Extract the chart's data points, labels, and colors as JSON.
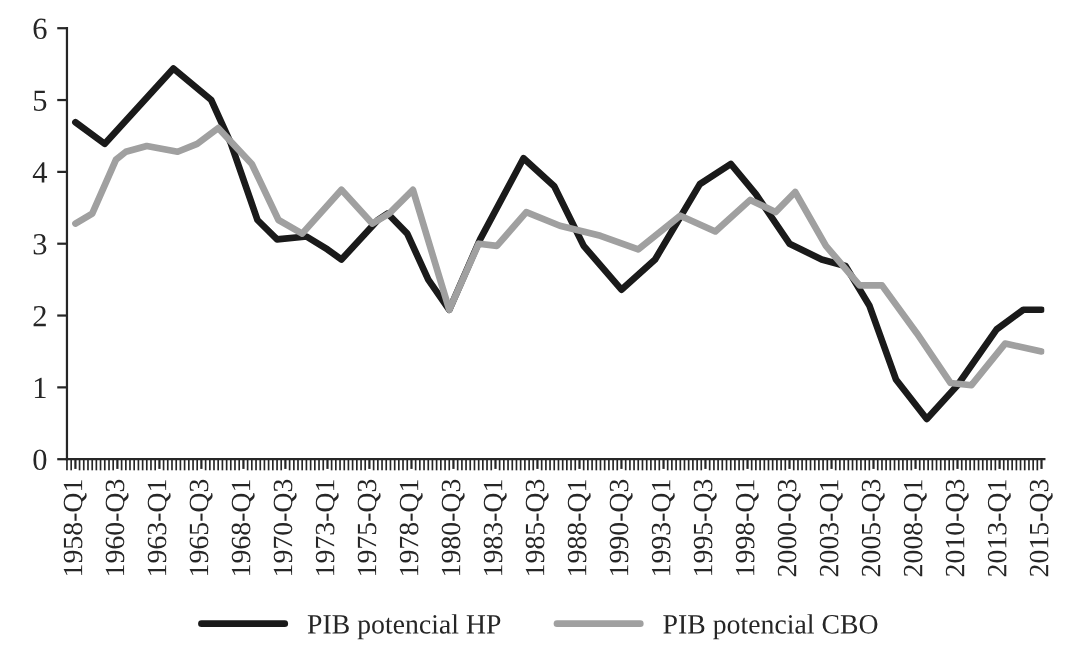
{
  "chart_data": {
    "type": "line",
    "xlim": [
      "1957-07",
      "2015-09"
    ],
    "xticks": [
      {
        "value": "1958-01",
        "label": "1958-Q1"
      },
      {
        "value": "1960-07",
        "label": "1960-Q3"
      },
      {
        "value": "1963-01",
        "label": "1963-Q1"
      },
      {
        "value": "1965-07",
        "label": "1965-Q3"
      },
      {
        "value": "1968-01",
        "label": "1968-Q1"
      },
      {
        "value": "1970-07",
        "label": "1970-Q3"
      },
      {
        "value": "1973-01",
        "label": "1973-Q1"
      },
      {
        "value": "1975-07",
        "label": "1975-Q3"
      },
      {
        "value": "1978-01",
        "label": "1978-Q1"
      },
      {
        "value": "1980-07",
        "label": "1980-Q3"
      },
      {
        "value": "1983-01",
        "label": "1983-Q1"
      },
      {
        "value": "1985-07",
        "label": "1985-Q3"
      },
      {
        "value": "1988-01",
        "label": "1988-Q1"
      },
      {
        "value": "1990-07",
        "label": "1990-Q3"
      },
      {
        "value": "1993-01",
        "label": "1993-Q1"
      },
      {
        "value": "1995-07",
        "label": "1995-Q3"
      },
      {
        "value": "1998-01",
        "label": "1998-Q1"
      },
      {
        "value": "2000-07",
        "label": "2000-Q3"
      },
      {
        "value": "2003-01",
        "label": "2003-Q1"
      },
      {
        "value": "2005-07",
        "label": "2005-Q3"
      },
      {
        "value": "2008-01",
        "label": "2008-Q1"
      },
      {
        "value": "2010-07",
        "label": "2010-Q3"
      },
      {
        "value": "2013-01",
        "label": "2013-Q1"
      },
      {
        "value": "2015-07",
        "label": "2015-Q3"
      }
    ],
    "ylim": [
      0,
      6
    ],
    "yticks": [
      0,
      1,
      2,
      3,
      4,
      5,
      6
    ],
    "grid": false,
    "legend": "bottom",
    "line_style": "solid",
    "marker": "none",
    "series": [
      {
        "name": "PIB potencial HP",
        "color": "#1a1a1a",
        "x": [
          "1958-01",
          "1959-10",
          "1963-11",
          "1966-02",
          "1967-04",
          "1968-11",
          "1970-01",
          "1971-10",
          "1973-01",
          "1973-11",
          "1976-01",
          "1976-08",
          "1977-10",
          "1979-01",
          "1980-04",
          "1982-02",
          "1984-09",
          "1986-07",
          "1988-04",
          "1990-07",
          "1992-07",
          "1995-03",
          "1997-01",
          "1998-07",
          "2000-07",
          "2002-06",
          "2003-11",
          "2005-04",
          "2006-11",
          "2008-09",
          "2010-07",
          "2012-11",
          "2014-06",
          "2015-07"
        ],
        "values": [
          4.69,
          4.39,
          5.44,
          5.0,
          4.4,
          3.33,
          3.06,
          3.1,
          2.92,
          2.78,
          3.33,
          3.42,
          3.14,
          2.5,
          2.08,
          3.06,
          4.19,
          3.8,
          2.97,
          2.36,
          2.78,
          3.83,
          4.11,
          3.69,
          3.0,
          2.78,
          2.69,
          2.14,
          1.11,
          0.56,
          1.03,
          1.81,
          2.08,
          2.08
        ]
      },
      {
        "name": "PIB potencial CBO",
        "color": "#a0a0a0",
        "x": [
          "1958-01",
          "1959-01",
          "1960-06",
          "1961-01",
          "1962-04",
          "1964-02",
          "1965-04",
          "1966-07",
          "1968-07",
          "1970-02",
          "1971-07",
          "1973-11",
          "1975-09",
          "1976-09",
          "1978-02",
          "1980-04",
          "1982-01",
          "1983-02",
          "1984-11",
          "1986-11",
          "1989-04",
          "1991-07",
          "1994-01",
          "1996-02",
          "1998-03",
          "1999-09",
          "2000-11",
          "2002-09",
          "2004-09",
          "2006-01",
          "2008-02",
          "2010-02",
          "2011-05",
          "2013-05",
          "2015-07"
        ],
        "values": [
          3.28,
          3.42,
          4.17,
          4.28,
          4.36,
          4.28,
          4.39,
          4.61,
          4.11,
          3.33,
          3.14,
          3.75,
          3.28,
          3.42,
          3.75,
          2.08,
          3.0,
          2.97,
          3.44,
          3.25,
          3.11,
          2.92,
          3.39,
          3.17,
          3.61,
          3.44,
          3.72,
          2.97,
          2.42,
          2.42,
          1.75,
          1.06,
          1.03,
          1.61,
          1.5
        ]
      }
    ]
  }
}
